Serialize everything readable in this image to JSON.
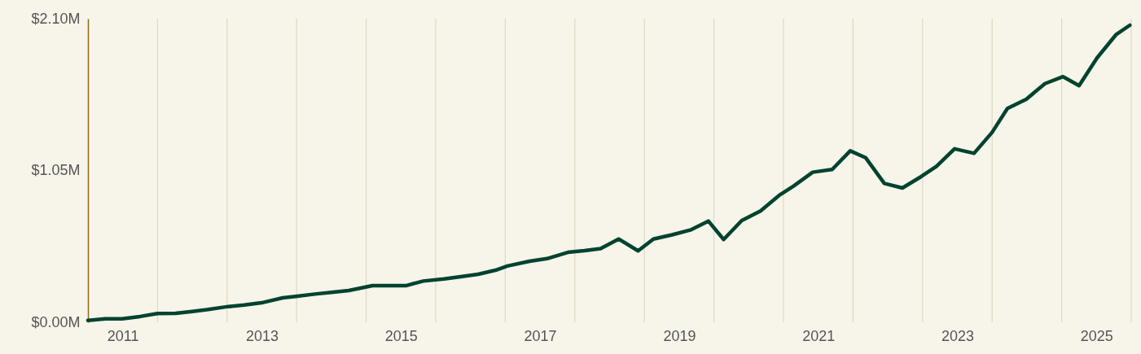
{
  "chart_data": {
    "type": "line",
    "x": [
      2011.0,
      2011.25,
      2011.49,
      2011.75,
      2012.0,
      2012.26,
      2012.5,
      2012.75,
      2013.02,
      2013.25,
      2013.52,
      2013.8,
      2014.01,
      2014.26,
      2014.5,
      2014.75,
      2015.09,
      2015.57,
      2015.82,
      2016.12,
      2016.36,
      2016.61,
      2016.86,
      2017.03,
      2017.35,
      2017.6,
      2017.9,
      2018.14,
      2018.37,
      2018.63,
      2018.91,
      2019.13,
      2019.4,
      2019.66,
      2019.92,
      2020.14,
      2020.4,
      2020.67,
      2020.95,
      2021.15,
      2021.42,
      2021.7,
      2021.96,
      2022.18,
      2022.45,
      2022.71,
      2022.98,
      2023.2,
      2023.46,
      2023.74,
      2024.0,
      2024.22,
      2024.49,
      2024.76,
      2025.02,
      2025.25,
      2025.51,
      2025.78,
      2025.98
    ],
    "series": [
      {
        "color": "#00432f",
        "values": [
          0.013,
          0.024,
          0.024,
          0.04,
          0.06,
          0.062,
          0.075,
          0.09,
          0.109,
          0.12,
          0.137,
          0.169,
          0.18,
          0.195,
          0.207,
          0.22,
          0.253,
          0.253,
          0.285,
          0.3,
          0.315,
          0.332,
          0.36,
          0.389,
          0.422,
          0.44,
          0.484,
          0.495,
          0.51,
          0.576,
          0.494,
          0.576,
          0.605,
          0.638,
          0.7,
          0.573,
          0.704,
          0.77,
          0.882,
          0.944,
          1.038,
          1.057,
          1.186,
          1.139,
          0.961,
          0.929,
          1.008,
          1.079,
          1.2,
          1.169,
          1.314,
          1.479,
          1.543,
          1.651,
          1.699,
          1.637,
          1.83,
          1.989,
          2.055
        ]
      }
    ],
    "xlim": [
      2011,
      2026
    ],
    "xticks": [
      {
        "value": 2011.5,
        "label": "2011"
      },
      {
        "value": 2012,
        "label": null
      },
      {
        "value": 2013,
        "label": null
      },
      {
        "value": 2013.5,
        "label": "2013"
      },
      {
        "value": 2014,
        "label": null
      },
      {
        "value": 2015,
        "label": null
      },
      {
        "value": 2015.5,
        "label": "2015"
      },
      {
        "value": 2016,
        "label": null
      },
      {
        "value": 2017,
        "label": null
      },
      {
        "value": 2017.5,
        "label": "2017"
      },
      {
        "value": 2018,
        "label": null
      },
      {
        "value": 2019,
        "label": null
      },
      {
        "value": 2019.5,
        "label": "2019"
      },
      {
        "value": 2020,
        "label": null
      },
      {
        "value": 2021,
        "label": null
      },
      {
        "value": 2021.5,
        "label": "2021"
      },
      {
        "value": 2022,
        "label": null
      },
      {
        "value": 2023,
        "label": null
      },
      {
        "value": 2023.5,
        "label": "2023"
      },
      {
        "value": 2024,
        "label": null
      },
      {
        "value": 2025,
        "label": null
      },
      {
        "value": 2025.5,
        "label": "2025"
      },
      {
        "value": 2026,
        "label": null
      }
    ],
    "ylim": [
      0,
      2.1
    ],
    "yticks": [
      {
        "value": 0,
        "label": "$0.00M"
      },
      {
        "value": 1.05,
        "label": "$1.05M"
      },
      {
        "value": 2.1,
        "label": "$2.10M"
      }
    ],
    "grid": "x",
    "line_style": "solid",
    "marker": "none"
  }
}
